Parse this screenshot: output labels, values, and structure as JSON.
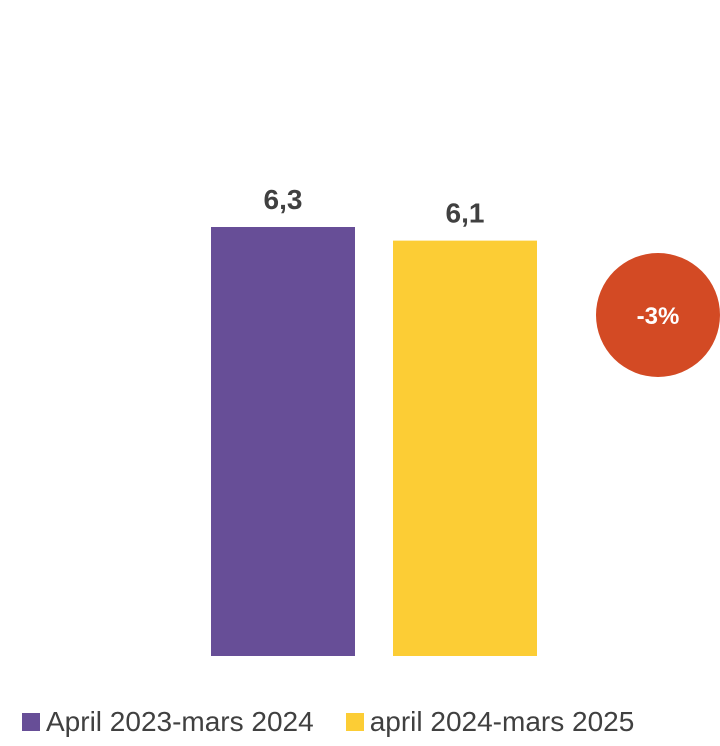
{
  "chart_data": {
    "type": "bar",
    "categories": [
      "April 2023-mars 2024",
      "april 2024-mars 2025"
    ],
    "values": [
      6.3,
      6.1
    ],
    "value_labels": [
      "6,3",
      "6,1"
    ],
    "colors": [
      "#674E97",
      "#FCCD35"
    ],
    "ylim": [
      0,
      6.3
    ],
    "grid": false,
    "legend": "bottom",
    "annotation": {
      "text": "-3%",
      "color": "#D34A24"
    }
  }
}
